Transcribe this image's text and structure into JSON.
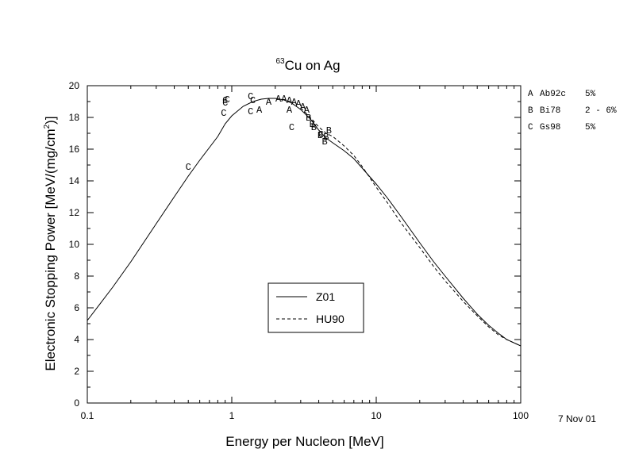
{
  "chart_data": {
    "type": "line",
    "title_sup": "63",
    "title_main": "Cu on Ag",
    "xlabel": "Energy per Nucleon [MeV]",
    "ylabel_main": "Electronic Stopping Power [MeV/(mg/cm",
    "ylabel_sup": "2",
    "ylabel_end": ")]",
    "x_scale": "log",
    "xlim": [
      0.1,
      100
    ],
    "ylim": [
      0,
      20
    ],
    "x_ticks": [
      0.1,
      1,
      10,
      100
    ],
    "x_tick_labels": [
      "0.1",
      "1",
      "10",
      "100"
    ],
    "y_ticks": [
      0,
      2,
      4,
      6,
      8,
      10,
      12,
      14,
      16,
      18,
      20
    ],
    "y_tick_labels": [
      "0",
      "2",
      "4",
      "6",
      "8",
      "10",
      "12",
      "14",
      "16",
      "18",
      "20"
    ],
    "date_stamp": "7 Nov 01",
    "legend_position": "center-bottom",
    "series": [
      {
        "name": "Z01",
        "style": "solid",
        "x": [
          0.1,
          0.15,
          0.2,
          0.3,
          0.4,
          0.5,
          0.6,
          0.7,
          0.8,
          0.9,
          1.0,
          1.2,
          1.4,
          1.6,
          1.8,
          2.0,
          2.3,
          2.6,
          3.0,
          3.5,
          4.0,
          4.5,
          5.0,
          6.0,
          7.0,
          8.0,
          10,
          12,
          15,
          20,
          25,
          30,
          40,
          50,
          60,
          70,
          80,
          100
        ],
        "y": [
          5.2,
          7.3,
          8.9,
          11.3,
          13.0,
          14.3,
          15.3,
          16.1,
          16.8,
          17.6,
          18.1,
          18.7,
          19.0,
          19.15,
          19.2,
          19.2,
          19.1,
          18.9,
          18.5,
          17.9,
          17.2,
          16.7,
          16.4,
          15.9,
          15.4,
          14.8,
          13.8,
          12.9,
          11.7,
          10.1,
          8.9,
          8.0,
          6.6,
          5.6,
          4.9,
          4.4,
          4.0,
          3.6
        ]
      },
      {
        "name": "HU90",
        "style": "dashed",
        "x": [
          3.0,
          3.5,
          4.0,
          4.5,
          5.0,
          6.0,
          7.0,
          8.0,
          10,
          12,
          15,
          20,
          25,
          30,
          40,
          50,
          60,
          70,
          80,
          100
        ],
        "y": [
          18.6,
          18.0,
          17.4,
          17.0,
          16.8,
          16.2,
          15.6,
          14.9,
          13.6,
          12.6,
          11.3,
          9.8,
          8.6,
          7.7,
          6.4,
          5.5,
          4.8,
          4.3,
          4.0,
          3.6
        ]
      }
    ],
    "data_sets": [
      {
        "letter": "A",
        "label": "Ab92c",
        "uncertainty": "5%",
        "points": [
          [
            1.55,
            18.5
          ],
          [
            1.8,
            19.0
          ],
          [
            2.1,
            19.2
          ],
          [
            2.3,
            19.2
          ],
          [
            2.5,
            19.1
          ],
          [
            2.7,
            19.0
          ],
          [
            2.9,
            18.9
          ],
          [
            3.1,
            18.7
          ],
          [
            3.3,
            18.5
          ],
          [
            2.5,
            18.5
          ]
        ]
      },
      {
        "letter": "B",
        "label": "Bi78",
        "uncertainty": "2 - 6%",
        "points": [
          [
            3.4,
            18.0
          ],
          [
            3.7,
            17.4
          ],
          [
            3.6,
            17.6
          ],
          [
            4.1,
            16.9
          ],
          [
            4.4,
            16.5
          ],
          [
            4.5,
            16.8
          ],
          [
            4.7,
            17.2
          ]
        ]
      },
      {
        "letter": "C",
        "label": "Gs98",
        "uncertainty": "5%",
        "points": [
          [
            0.5,
            14.9
          ],
          [
            0.88,
            18.3
          ],
          [
            0.9,
            18.95
          ],
          [
            0.9,
            19.1
          ],
          [
            0.93,
            19.15
          ],
          [
            1.35,
            18.4
          ],
          [
            1.35,
            19.35
          ],
          [
            1.4,
            19.1
          ],
          [
            2.6,
            17.4
          ],
          [
            4.15,
            16.95
          ]
        ]
      }
    ]
  }
}
